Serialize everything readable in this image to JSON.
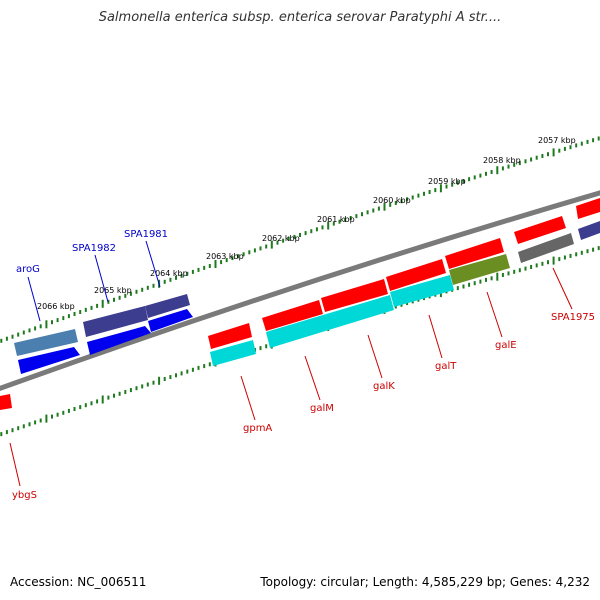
{
  "title": "Salmonella enterica subsp. enterica serovar Paratyphi A str....",
  "footer": {
    "accession": "Accession: NC_006511",
    "summary": "Topology: circular; Length: 4,585,229 bp; Genes: 4,232"
  },
  "colors": {
    "backbone": "#7a7a7a",
    "tick": "#1e7a1e",
    "kbp_label": "#000000",
    "forward_gene_label": "#0000cc",
    "reverse_gene_label": "#cc0000",
    "red_gene": "#ff0000",
    "cyan_gene": "#00d8d8",
    "olive_gene": "#6b8e23",
    "blue_gene": "#0000ee",
    "slate_gene": "#3d3d8f",
    "steel_gene": "#4a7fb0",
    "gray_gene": "#666666"
  },
  "kbp_labels": [
    "2057 kbp",
    "2058 kbp",
    "2059 kbp",
    "2060 kbp",
    "2061 kbp",
    "2062 kbp",
    "2063 kbp",
    "2064 kbp",
    "2065 kbp",
    "2066 kbp"
  ],
  "forward_labels": [
    "aroG",
    "SPA1982",
    "SPA1981"
  ],
  "reverse_labels": [
    "SPA1975",
    "galE",
    "galT",
    "galK",
    "galM",
    "gpmA",
    "ybgS"
  ]
}
